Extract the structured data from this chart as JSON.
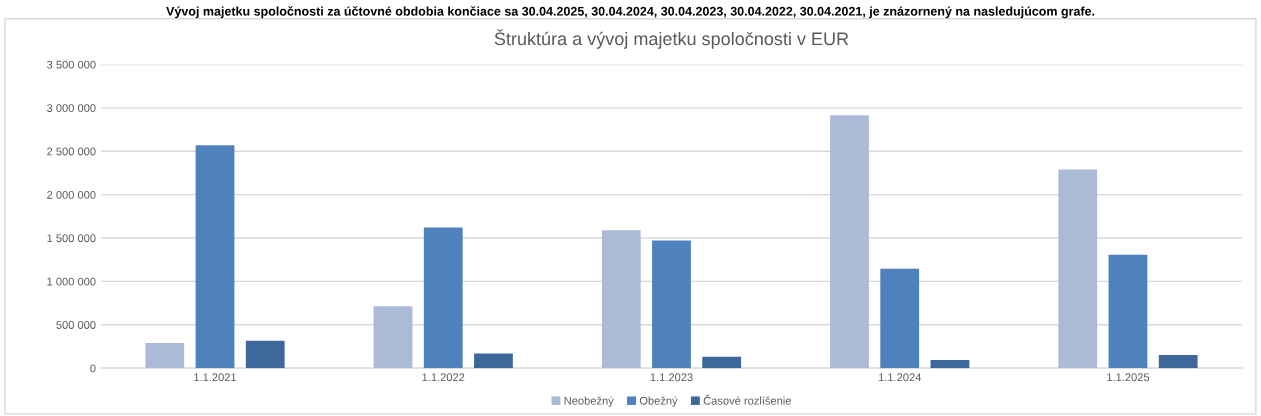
{
  "chart_data": {
    "type": "bar",
    "title": "Štruktúra a vývoj majetku spoločnosti v EUR",
    "annotations": [
      "Vývoj majetku spoločnosti za účtovné obdobia končiace sa 30.04.2025, 30.04.2024, 30.04.2023, 30.04.2022, 30.04.2021, je znázornený na nasledujúcom grafe."
    ],
    "categories": [
      "1.1.2021",
      "1.1.2022",
      "1.1.2023",
      "1.1.2024",
      "1.1.2025"
    ],
    "series": [
      {
        "name": "Neobežný",
        "color": "#abbad7",
        "values": [
          290000,
          714000,
          1589000,
          2914000,
          2290000
        ]
      },
      {
        "name": "Obežný",
        "color": "#4f81bd",
        "values": [
          2570000,
          1622000,
          1471000,
          1145000,
          1306000
        ]
      },
      {
        "name": "Časové rozlíšenie",
        "color": "#3e6899",
        "values": [
          317000,
          170000,
          132000,
          95000,
          151000
        ]
      }
    ],
    "ylim": [
      0,
      3500000
    ],
    "yticks": [
      0,
      {
        "value": 500000,
        "label": "500 000"
      },
      {
        "value": 1000000,
        "label": "1 000 000"
      },
      {
        "value": 1500000,
        "label": "1 500 000"
      },
      {
        "value": 2000000,
        "label": "2 000 000"
      },
      {
        "value": 2500000,
        "label": "2 500 000"
      },
      {
        "value": 3000000,
        "label": "3 000 000"
      },
      {
        "value": 3500000,
        "label": "3 500 000"
      }
    ],
    "grid": "y",
    "legend": "bottom"
  }
}
